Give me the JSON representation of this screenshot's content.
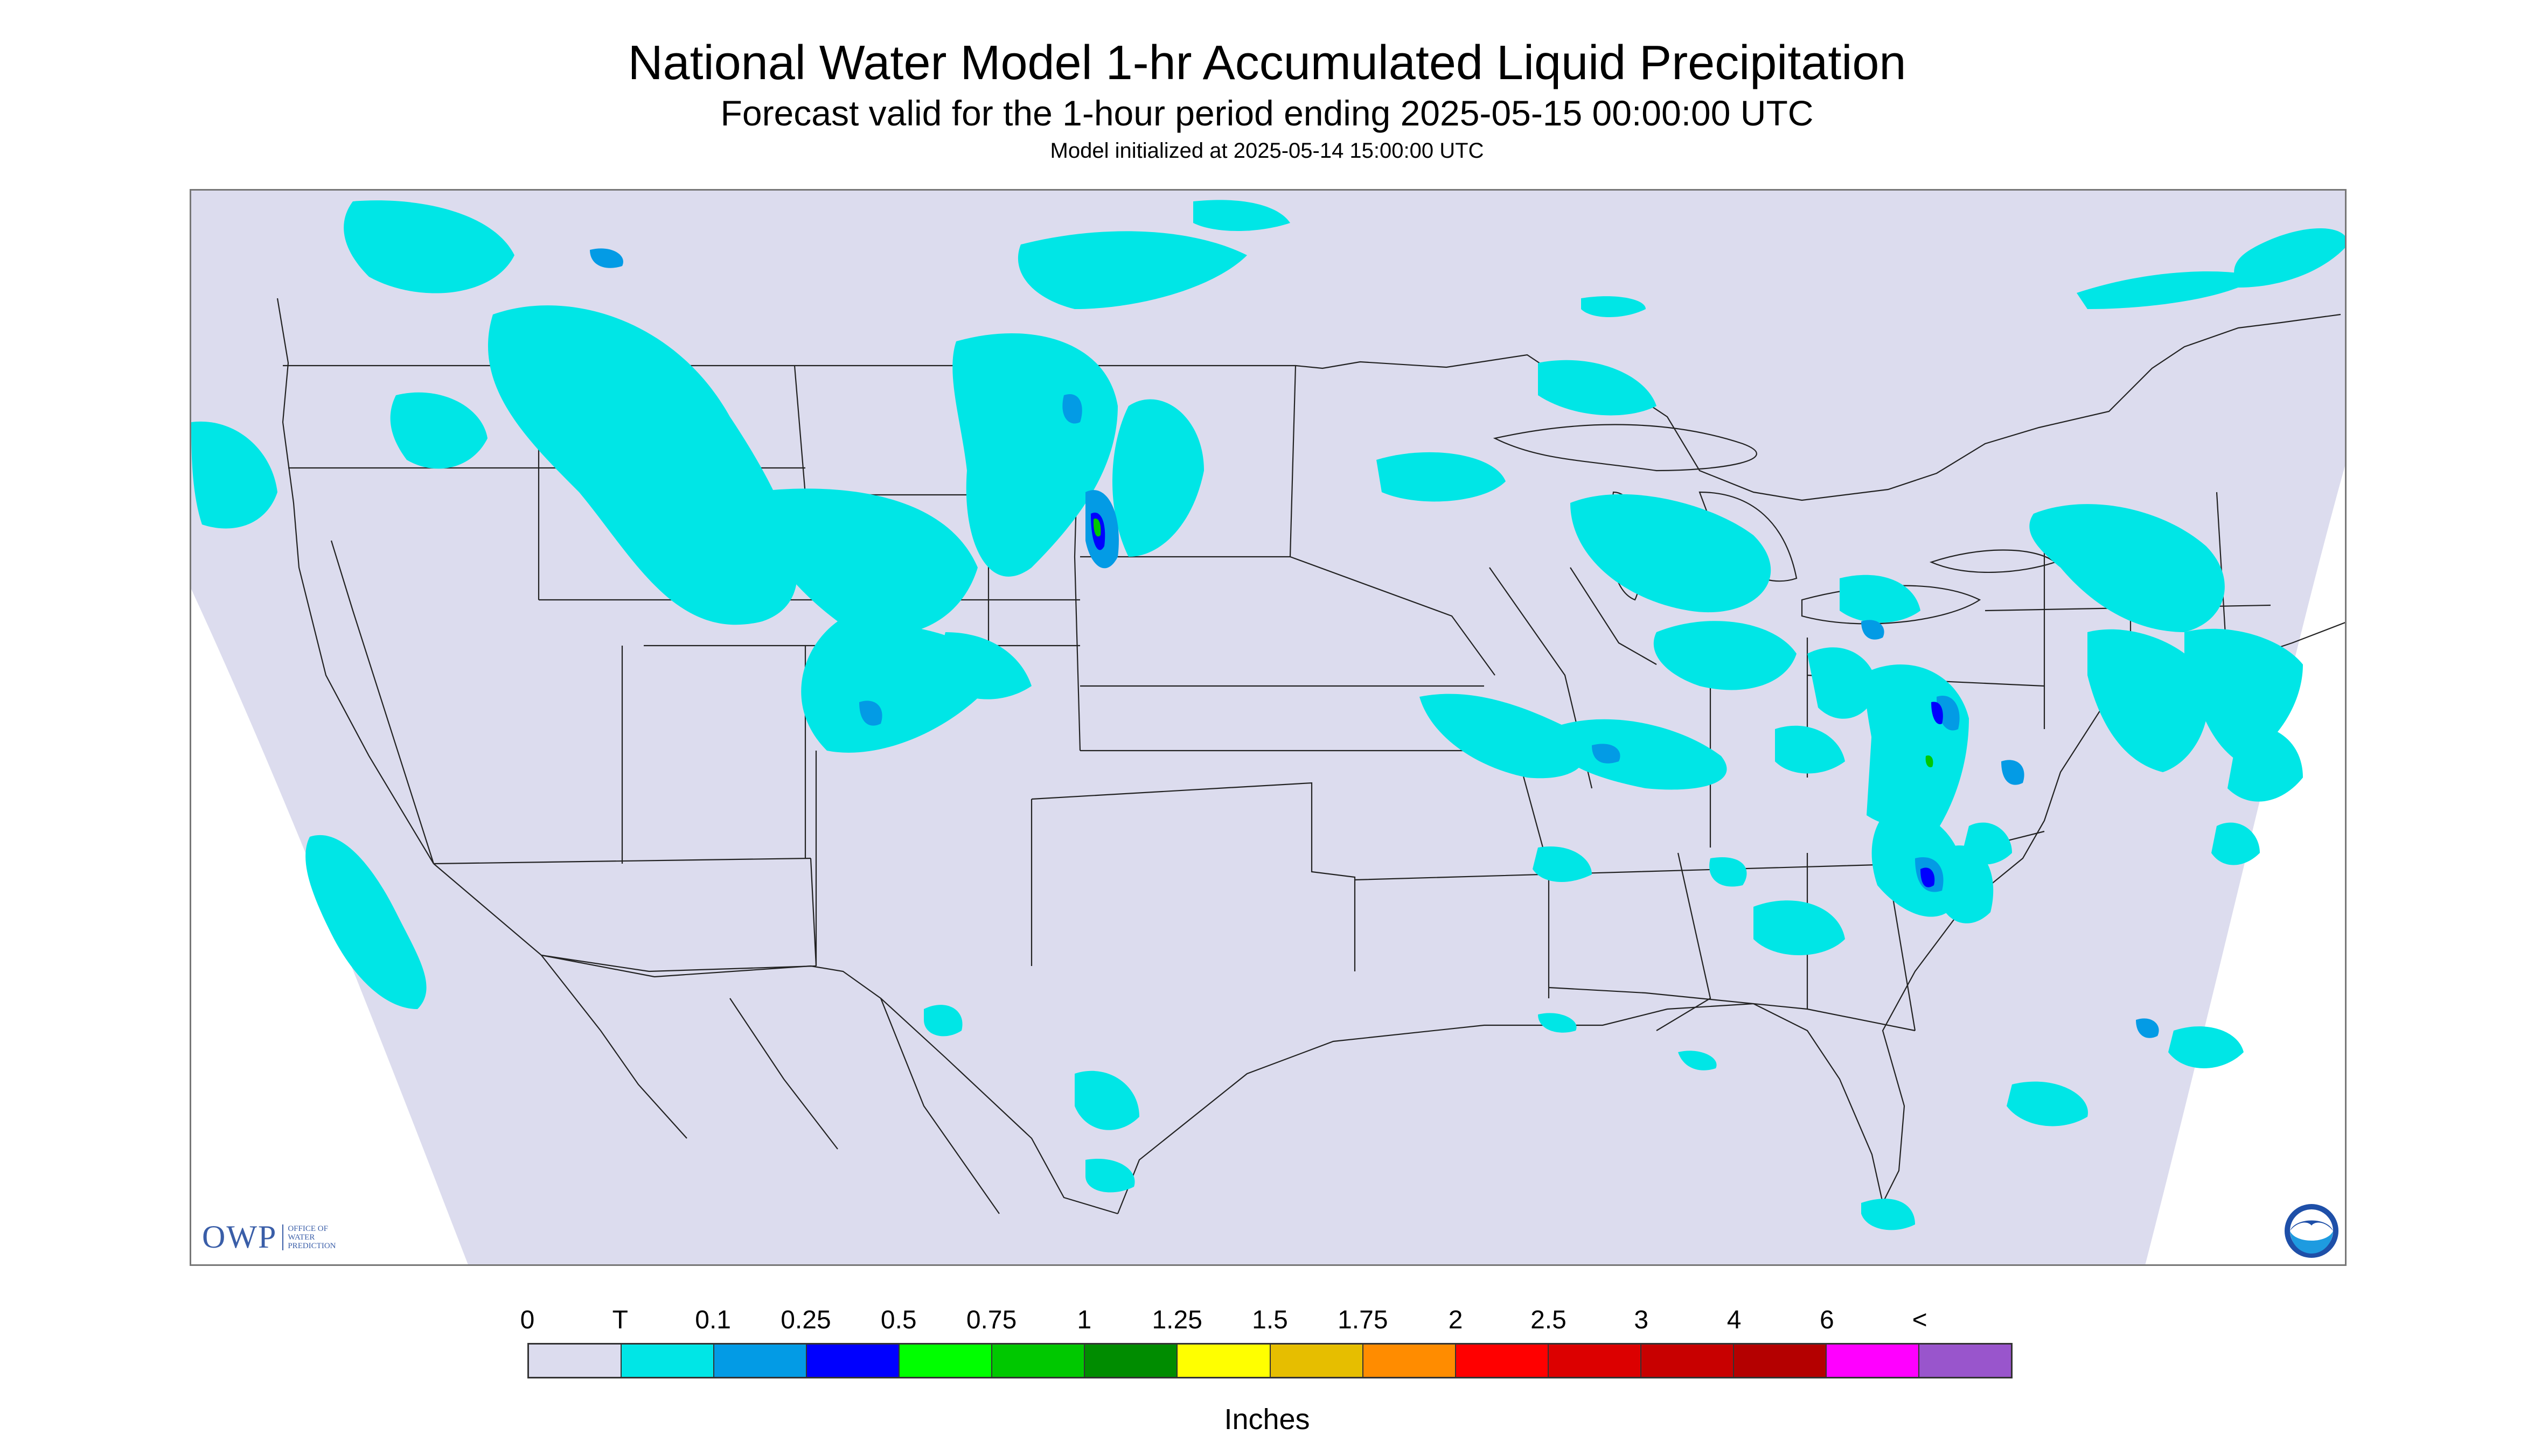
{
  "title": "National Water Model 1-hr Accumulated Liquid Precipitation",
  "subtitle": "Forecast valid for the 1-hour period ending 2025-05-15 00:00:00 UTC",
  "init_line": "Model initialized at 2025-05-14 15:00:00 UTC",
  "map": {
    "domain_color": "#dcdcee",
    "outside_color": "#ffffff",
    "precip_colors": {
      "trace": "#00e6e6",
      "light": "#039be5",
      "medium": "#0000ff",
      "green": "#00c800"
    }
  },
  "logos": {
    "owp": {
      "letters": "OWP",
      "lines": [
        "OFFICE OF",
        "WATER",
        "PREDICTION"
      ]
    },
    "noaa": {
      "text": "NOAA"
    }
  },
  "legend": {
    "labels": [
      "0",
      "T",
      "0.1",
      "0.25",
      "0.5",
      "0.75",
      "1",
      "1.25",
      "1.5",
      "1.75",
      "2",
      "2.5",
      "3",
      "4",
      "6",
      "<"
    ],
    "colors": [
      "#dcdcee",
      "#00e6e6",
      "#039be5",
      "#0000ff",
      "#00ff00",
      "#00c800",
      "#008c00",
      "#ffff00",
      "#e6be00",
      "#ff8c00",
      "#ff0000",
      "#dc0000",
      "#c80000",
      "#b40000",
      "#ff00ff",
      "#9955cc"
    ],
    "units": "Inches"
  }
}
